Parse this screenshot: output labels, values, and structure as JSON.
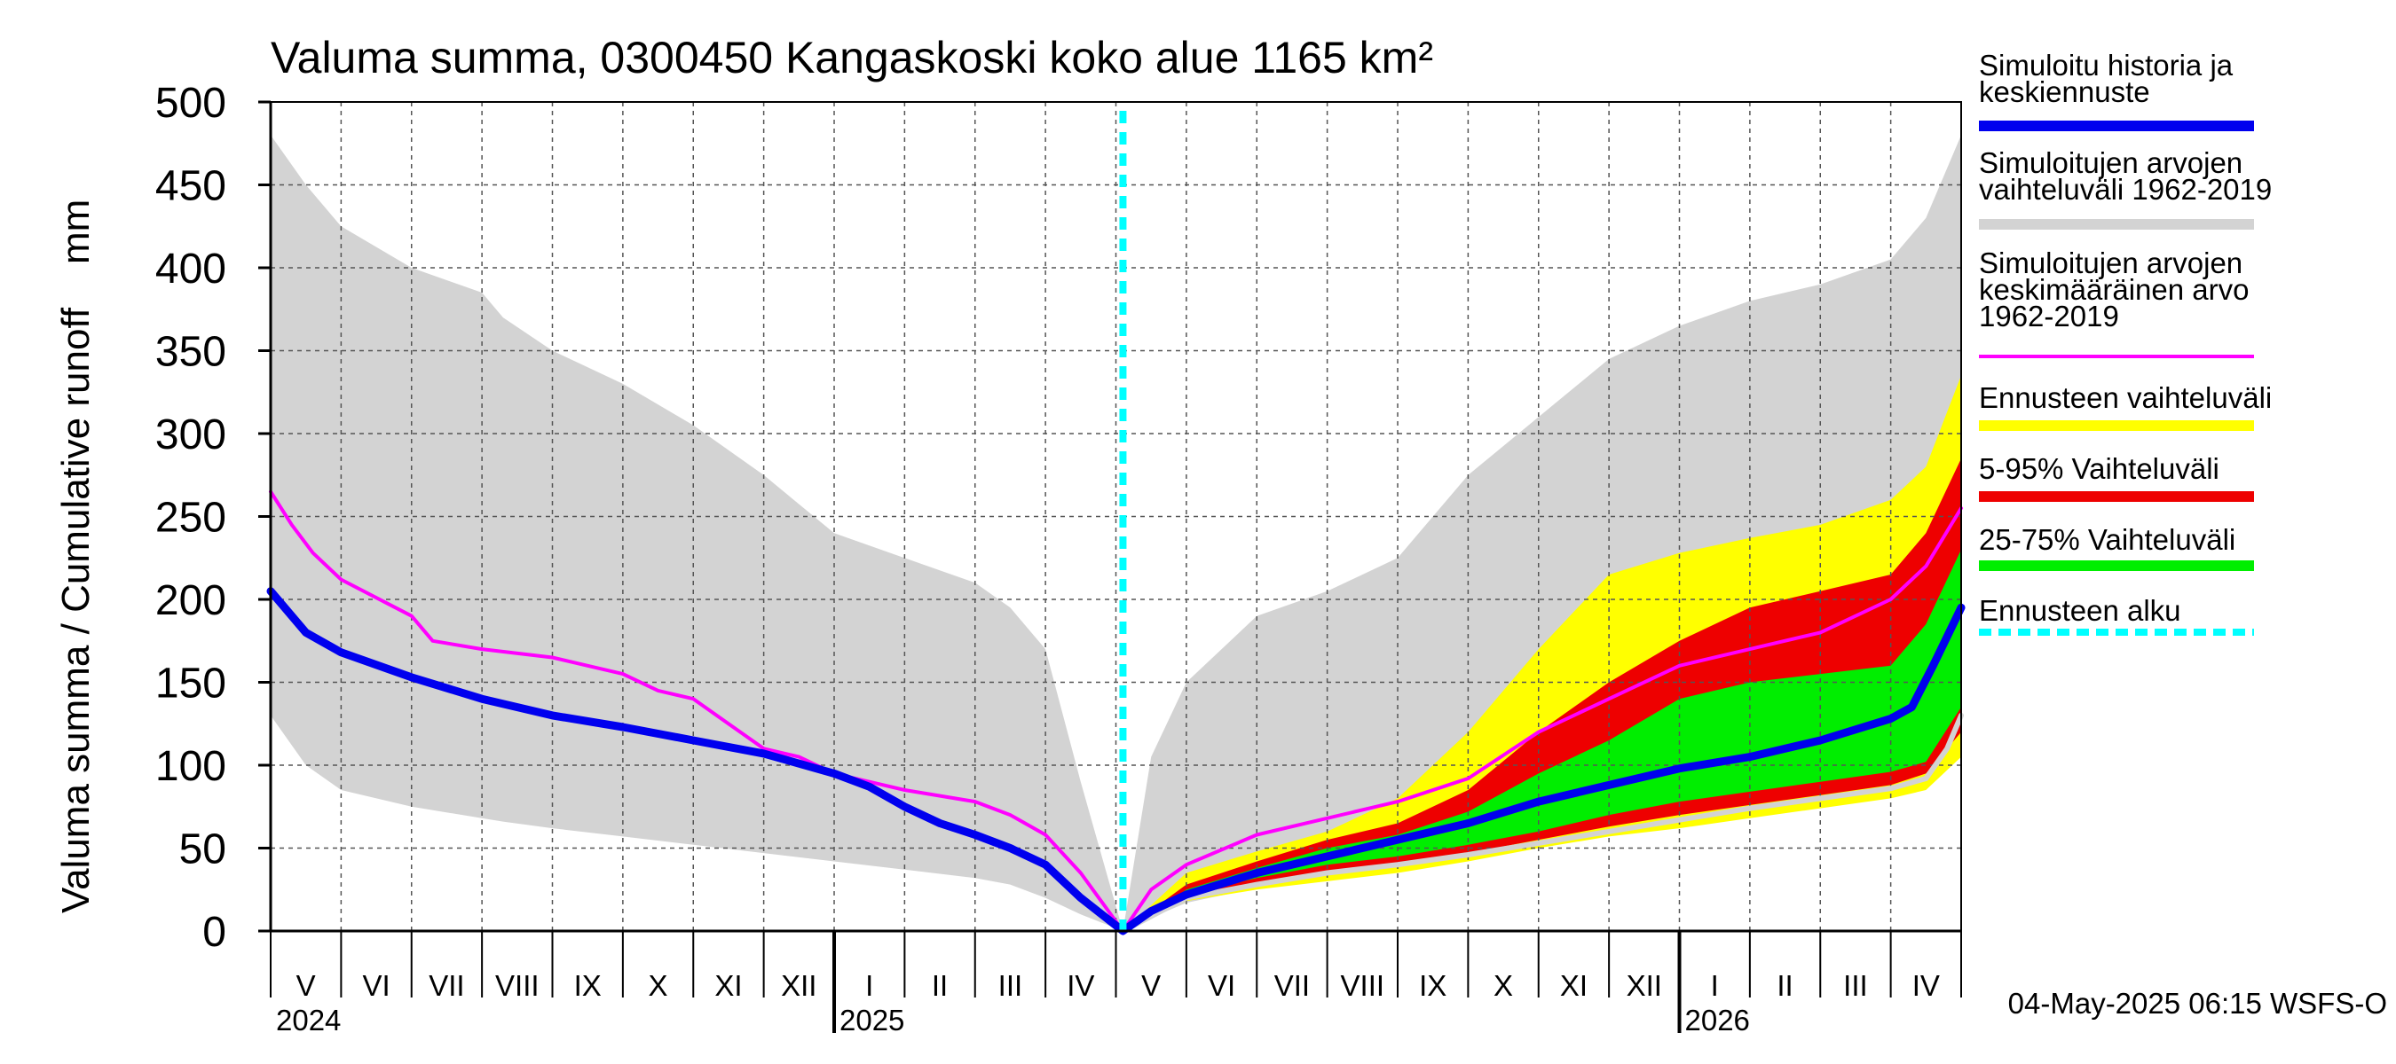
{
  "chart_data": {
    "type": "area",
    "title": "Valuma summa, 0300450 Kangaskoski koko alue 1165 km²",
    "ylabel": "Valuma summa / Cumulative runoff    mm",
    "ylim": [
      0,
      500
    ],
    "yticks": [
      0,
      50,
      100,
      150,
      200,
      250,
      300,
      350,
      400,
      450,
      500
    ],
    "x_range_months": [
      0,
      24
    ],
    "forecast_start_month": 12.1,
    "month_labels": [
      "V",
      "VI",
      "VII",
      "VIII",
      "IX",
      "X",
      "XI",
      "XII",
      "I",
      "II",
      "III",
      "IV",
      "V",
      "VI",
      "VII",
      "VIII",
      "IX",
      "X",
      "XI",
      "XII",
      "I",
      "II",
      "III",
      "IV"
    ],
    "year_labels": [
      {
        "label": "2024",
        "month": 0
      },
      {
        "label": "2025",
        "month": 8
      },
      {
        "label": "2026",
        "month": 20
      }
    ],
    "timestamp": "04-May-2025 06:15 WSFS-O",
    "colors": {
      "hist_range": "#d3d3d3",
      "mean": "#ff00ff",
      "sim": "#0000ee",
      "forecast_range": "#ffff00",
      "p5_95": "#ee0000",
      "p25_75": "#00ee00",
      "forecast_start": "#00ffff",
      "median_forecast": "#d3d3d3"
    },
    "legend": [
      {
        "label": "Simuloitu historia ja keskiennuste",
        "color": "#0000ee",
        "style": "solid"
      },
      {
        "label": "Simuloitujen arvojen vaihteluväli 1962-2019",
        "color": "#d3d3d3",
        "style": "solid"
      },
      {
        "label": "Simuloitujen arvojen keskimääräinen arvo 1962-2019",
        "color": "#ff00ff",
        "style": "thin"
      },
      {
        "label": "Ennusteen vaihteluväli",
        "color": "#ffff00",
        "style": "solid"
      },
      {
        "label": "5-95% Vaihteluväli",
        "color": "#ee0000",
        "style": "solid"
      },
      {
        "label": "25-75% Vaihteluväli",
        "color": "#00ee00",
        "style": "solid"
      },
      {
        "label": "Ennusteen alku",
        "color": "#00ffff",
        "style": "dashed"
      }
    ],
    "series": {
      "hist_range": {
        "x": [
          0,
          0.5,
          1,
          2,
          3,
          3.3,
          4,
          5,
          6,
          7,
          8,
          9,
          10,
          10.5,
          11,
          11.5,
          12.1,
          12.5,
          13,
          14,
          15,
          16,
          17,
          18,
          19,
          20,
          21,
          22,
          23,
          23.5,
          24
        ],
        "upper": [
          480,
          450,
          425,
          400,
          385,
          370,
          350,
          330,
          305,
          275,
          240,
          225,
          210,
          195,
          170,
          90,
          0,
          105,
          150,
          190,
          205,
          225,
          275,
          310,
          345,
          365,
          380,
          390,
          405,
          430,
          480
        ],
        "lower": [
          130,
          100,
          85,
          75,
          68,
          66,
          62,
          57,
          52,
          47,
          42,
          37,
          32,
          28,
          20,
          10,
          0,
          8,
          17,
          26,
          33,
          40,
          49,
          58,
          66,
          72,
          78,
          84,
          90,
          95,
          115
        ]
      },
      "mean": {
        "x": [
          0,
          0.3,
          0.6,
          1,
          2,
          2.3,
          3,
          4,
          4.5,
          5,
          5.5,
          6,
          6.5,
          7,
          7.5,
          8,
          8.5,
          9,
          10,
          10.5,
          11,
          11.5,
          12.1,
          12.5,
          13,
          14,
          15,
          16,
          17,
          18,
          19,
          20,
          21,
          22,
          23,
          23.5,
          24
        ],
        "y": [
          265,
          245,
          228,
          212,
          190,
          175,
          170,
          165,
          160,
          155,
          145,
          140,
          125,
          110,
          105,
          95,
          90,
          85,
          78,
          70,
          58,
          35,
          0,
          25,
          40,
          58,
          68,
          78,
          92,
          120,
          140,
          160,
          170,
          180,
          200,
          220,
          255
        ]
      },
      "sim": {
        "x": [
          0,
          0.5,
          1,
          2,
          3,
          4,
          5,
          6,
          7,
          8,
          8.5,
          9,
          9.5,
          10,
          10.5,
          11,
          11.5,
          12.1,
          12.5,
          13,
          14,
          15,
          16,
          17,
          18,
          19,
          20,
          21,
          22,
          23,
          23.3,
          23.6,
          24
        ],
        "y": [
          205,
          180,
          168,
          153,
          140,
          130,
          123,
          115,
          107,
          95,
          87,
          75,
          65,
          58,
          50,
          40,
          20,
          0,
          12,
          22,
          35,
          45,
          55,
          65,
          78,
          88,
          98,
          105,
          115,
          128,
          135,
          160,
          195
        ]
      },
      "forecast_range": {
        "x": [
          12.1,
          13,
          14,
          15,
          16,
          17,
          18,
          19,
          20,
          21,
          22,
          23,
          23.5,
          24
        ],
        "upper": [
          0,
          35,
          48,
          60,
          80,
          120,
          170,
          215,
          228,
          237,
          245,
          260,
          280,
          335
        ],
        "lower": [
          0,
          18,
          25,
          30,
          35,
          42,
          50,
          57,
          62,
          68,
          74,
          80,
          85,
          105
        ]
      },
      "p5_95": {
        "x": [
          12.1,
          13,
          14,
          15,
          16,
          17,
          18,
          19,
          20,
          21,
          22,
          23,
          23.5,
          24
        ],
        "upper": [
          0,
          28,
          42,
          55,
          65,
          85,
          120,
          150,
          175,
          195,
          205,
          215,
          240,
          285
        ],
        "lower": [
          0,
          20,
          28,
          35,
          40,
          47,
          55,
          63,
          70,
          76,
          82,
          88,
          95,
          120
        ]
      },
      "p25_75": {
        "x": [
          12.1,
          13,
          14,
          15,
          16,
          17,
          18,
          19,
          20,
          21,
          22,
          23,
          23.5,
          24
        ],
        "upper": [
          0,
          25,
          38,
          50,
          58,
          72,
          95,
          115,
          140,
          150,
          155,
          160,
          185,
          230
        ],
        "lower": [
          0,
          22,
          32,
          40,
          45,
          52,
          60,
          70,
          78,
          84,
          90,
          96,
          102,
          135
        ]
      },
      "median_forecast": {
        "x": [
          12.1,
          13,
          14,
          15,
          16,
          17,
          18,
          19,
          20,
          21,
          22,
          23,
          23.5,
          23.8,
          24
        ],
        "y": [
          0,
          20,
          28,
          35,
          40,
          46,
          53,
          60,
          67,
          74,
          80,
          86,
          92,
          110,
          130
        ]
      }
    }
  }
}
